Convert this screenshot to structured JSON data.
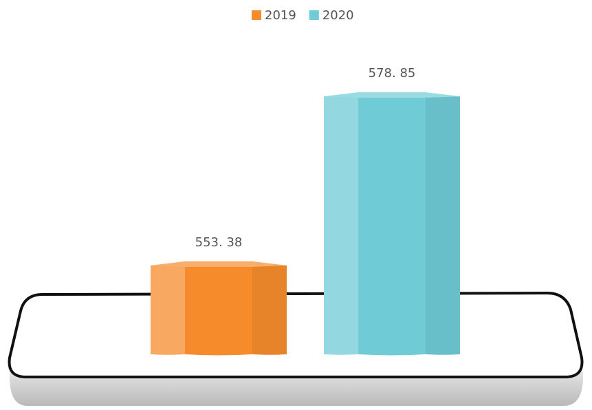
{
  "chart_data": {
    "type": "bar",
    "categories": [
      null
    ],
    "series": [
      {
        "name": "2019",
        "color": "#f68b2c",
        "values": [
          553.38
        ],
        "value_labels": [
          "553. 38"
        ]
      },
      {
        "name": "2020",
        "color": "#6fcbd6",
        "values": [
          578.85
        ],
        "value_labels": [
          "578. 85"
        ]
      }
    ],
    "ylim": [
      540,
      580
    ],
    "legend": "top"
  }
}
